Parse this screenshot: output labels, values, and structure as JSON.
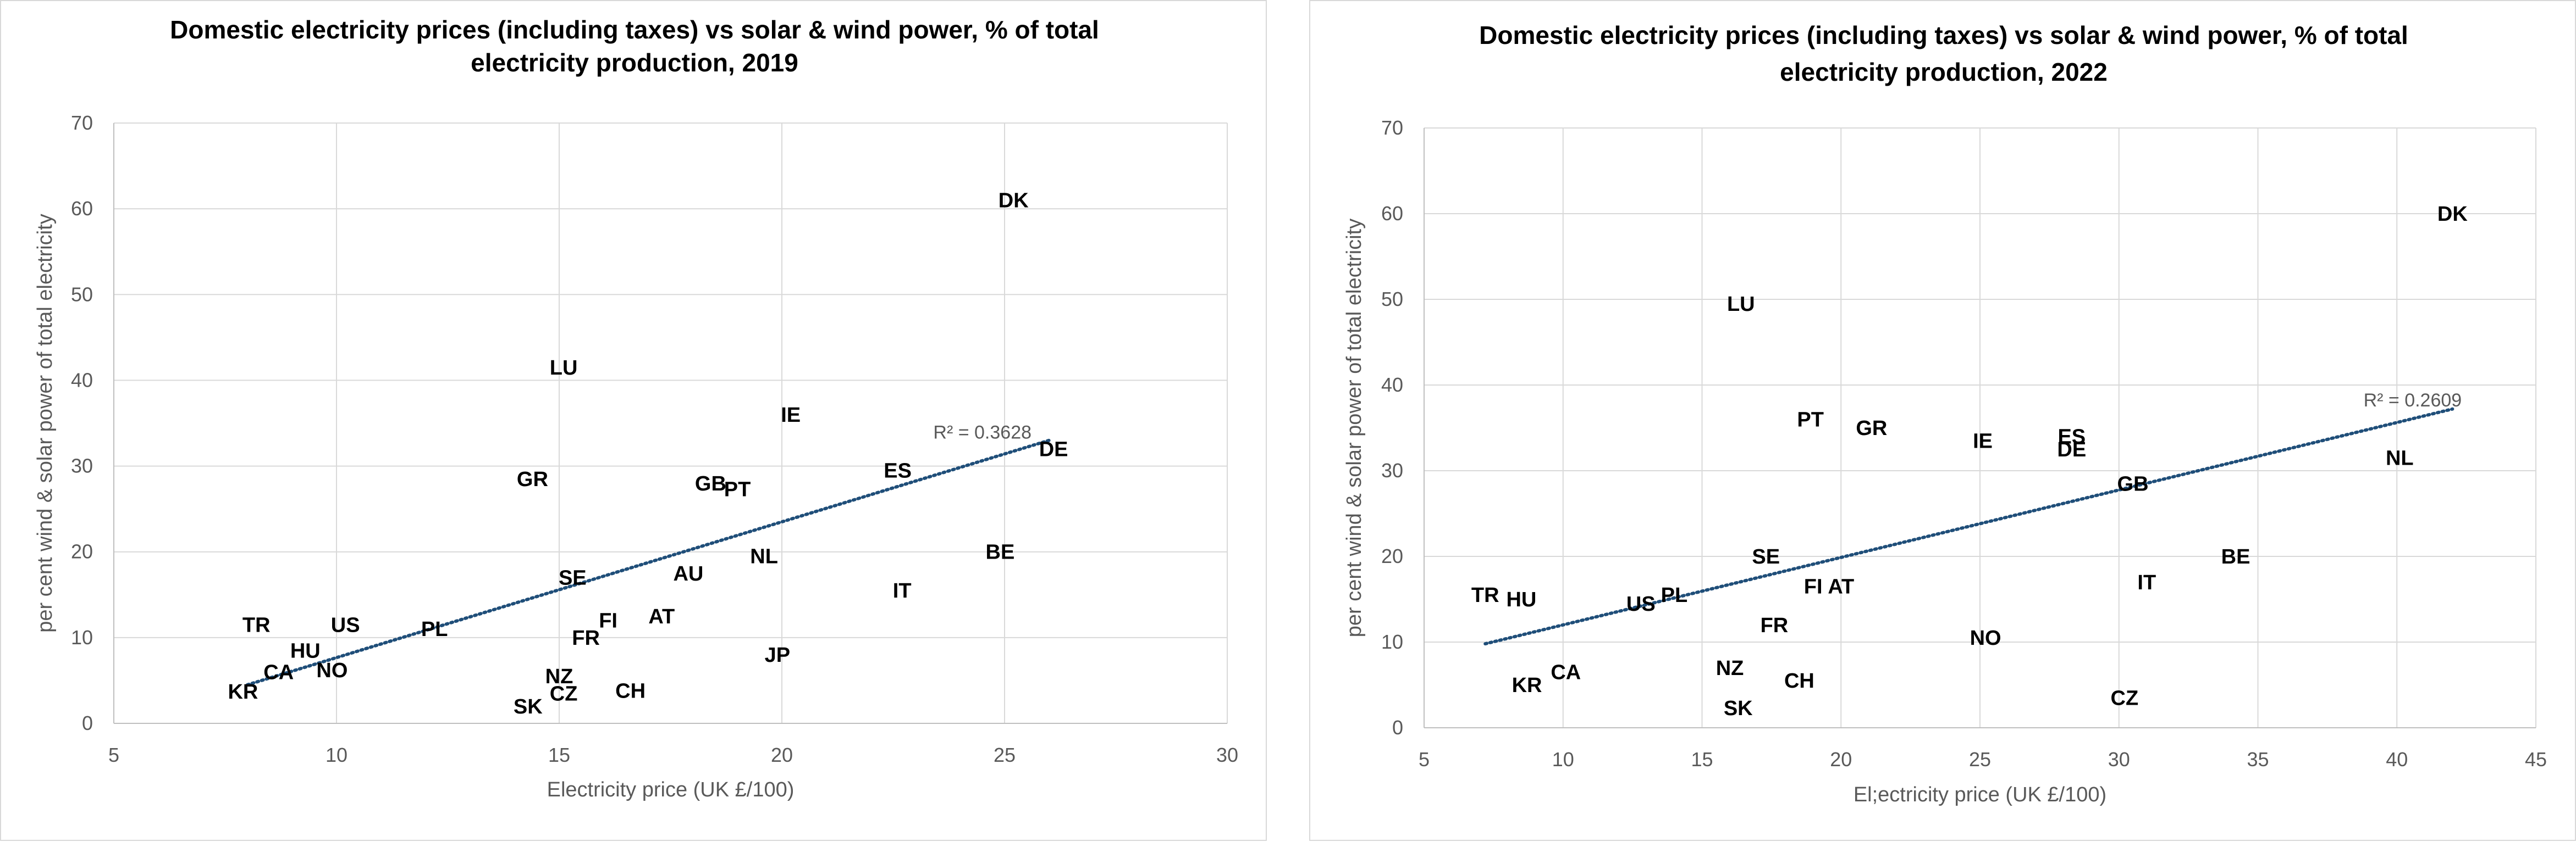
{
  "chart_data": [
    {
      "type": "scatter",
      "title_lines": [
        "Domestic electricity prices (including taxes) vs solar & wind power, % of total",
        "electricity production, 2019"
      ],
      "xlabel": "Electricity price (UK £/100)",
      "ylabel": "per cent wind & solar power of total electricity",
      "xlim": [
        5,
        30
      ],
      "ylim": [
        0,
        70
      ],
      "xticks": [
        5,
        10,
        15,
        20,
        25,
        30
      ],
      "yticks": [
        0,
        10,
        20,
        30,
        40,
        50,
        60,
        70
      ],
      "grid": true,
      "trendline": {
        "type": "linear",
        "x": [
          8,
          26
        ],
        "y": [
          4.5,
          33
        ],
        "r2_label": "R² = 0.3628",
        "r2_x": 23.4,
        "r2_y": 33.2
      },
      "points": [
        {
          "label": "DK",
          "x": 25.2,
          "y": 61
        },
        {
          "label": "LU",
          "x": 15.1,
          "y": 41.5
        },
        {
          "label": "IE",
          "x": 20.2,
          "y": 36
        },
        {
          "label": "DE",
          "x": 26.1,
          "y": 32
        },
        {
          "label": "ES",
          "x": 22.6,
          "y": 29.5
        },
        {
          "label": "GR",
          "x": 14.4,
          "y": 28.5
        },
        {
          "label": "GB",
          "x": 18.4,
          "y": 28
        },
        {
          "label": "PT",
          "x": 19.0,
          "y": 27.3
        },
        {
          "label": "BE",
          "x": 24.9,
          "y": 20
        },
        {
          "label": "NL",
          "x": 19.6,
          "y": 19.5
        },
        {
          "label": "AU",
          "x": 17.9,
          "y": 17.5
        },
        {
          "label": "SE",
          "x": 15.3,
          "y": 17
        },
        {
          "label": "IT",
          "x": 22.7,
          "y": 15.5
        },
        {
          "label": "AT",
          "x": 17.3,
          "y": 12.5
        },
        {
          "label": "FI",
          "x": 16.1,
          "y": 12
        },
        {
          "label": "TR",
          "x": 8.2,
          "y": 11.5
        },
        {
          "label": "US",
          "x": 10.2,
          "y": 11.5
        },
        {
          "label": "PL",
          "x": 12.2,
          "y": 11
        },
        {
          "label": "FR",
          "x": 15.6,
          "y": 10
        },
        {
          "label": "HU",
          "x": 9.3,
          "y": 8.5
        },
        {
          "label": "JP",
          "x": 19.9,
          "y": 8
        },
        {
          "label": "CA",
          "x": 8.7,
          "y": 6
        },
        {
          "label": "NO",
          "x": 9.9,
          "y": 6.2
        },
        {
          "label": "NZ",
          "x": 15.0,
          "y": 5.5
        },
        {
          "label": "KR",
          "x": 7.9,
          "y": 3.7
        },
        {
          "label": "CZ",
          "x": 15.1,
          "y": 3.5
        },
        {
          "label": "CH",
          "x": 16.6,
          "y": 3.8
        },
        {
          "label": "SK",
          "x": 14.3,
          "y": 2
        }
      ]
    },
    {
      "type": "scatter",
      "title_lines": [
        "Domestic electricity prices (including taxes) vs solar & wind power, % of total",
        "electricity production, 2022"
      ],
      "xlabel": "El;ectricity price (UK £/100)",
      "ylabel": "per cent wind & solar power of total electricity",
      "xlim": [
        5,
        45
      ],
      "ylim": [
        0,
        70
      ],
      "xticks": [
        5,
        10,
        15,
        20,
        25,
        30,
        35,
        40,
        45
      ],
      "yticks": [
        0,
        10,
        20,
        30,
        40,
        50,
        60,
        70
      ],
      "grid": true,
      "trendline": {
        "type": "linear",
        "x": [
          7.2,
          42
        ],
        "y": [
          9.8,
          37.2
        ],
        "r2_label": "R² = 0.2609",
        "r2_x": 38.8,
        "r2_y": 37.5
      },
      "points": [
        {
          "label": "DK",
          "x": 42.0,
          "y": 60
        },
        {
          "label": "LU",
          "x": 16.4,
          "y": 49.5
        },
        {
          "label": "PT",
          "x": 18.9,
          "y": 36
        },
        {
          "label": "GR",
          "x": 21.1,
          "y": 35
        },
        {
          "label": "IE",
          "x": 25.1,
          "y": 33.5
        },
        {
          "label": "ES",
          "x": 28.3,
          "y": 34
        },
        {
          "label": "DE",
          "x": 28.3,
          "y": 32.5
        },
        {
          "label": "NL",
          "x": 40.1,
          "y": 31.5
        },
        {
          "label": "GB",
          "x": 30.5,
          "y": 28.5
        },
        {
          "label": "SE",
          "x": 17.3,
          "y": 20
        },
        {
          "label": "BE",
          "x": 34.2,
          "y": 20
        },
        {
          "label": "IT",
          "x": 31.0,
          "y": 17
        },
        {
          "label": "FI",
          "x": 19.0,
          "y": 16.5
        },
        {
          "label": "AT",
          "x": 20.0,
          "y": 16.5
        },
        {
          "label": "TR",
          "x": 7.2,
          "y": 15.5
        },
        {
          "label": "HU",
          "x": 8.5,
          "y": 15
        },
        {
          "label": "US",
          "x": 12.8,
          "y": 14.5
        },
        {
          "label": "PL",
          "x": 14.0,
          "y": 15.5
        },
        {
          "label": "FR",
          "x": 17.6,
          "y": 12
        },
        {
          "label": "NO",
          "x": 25.2,
          "y": 10.5
        },
        {
          "label": "NZ",
          "x": 16.0,
          "y": 7
        },
        {
          "label": "CA",
          "x": 10.1,
          "y": 6.5
        },
        {
          "label": "CH",
          "x": 18.5,
          "y": 5.5
        },
        {
          "label": "KR",
          "x": 8.7,
          "y": 5
        },
        {
          "label": "CZ",
          "x": 30.2,
          "y": 3.5
        },
        {
          "label": "SK",
          "x": 16.3,
          "y": 2.3
        }
      ]
    }
  ],
  "colors": {
    "trendline": "#1f4e79",
    "grid": "#d9d9d9",
    "text": "#000000",
    "tick_text": "#595959"
  }
}
